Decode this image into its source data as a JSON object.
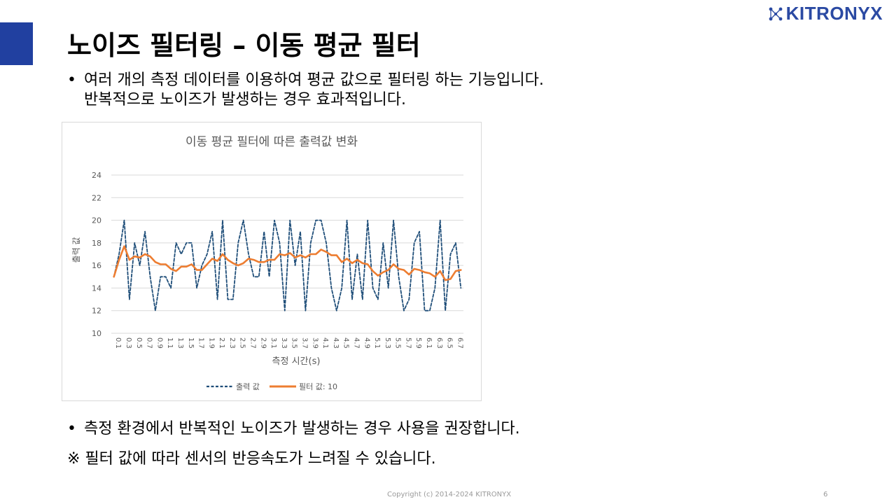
{
  "brand": {
    "logo_text": "KITRONYX",
    "logo_icon": "network-nodes-icon",
    "accent_color": "#2140a0"
  },
  "slide": {
    "title": "노이즈 필터링 – 이동 평균 필터",
    "bullet1_line1": "여러 개의 측정 데이터를 이용하여 평균 값으로 필터링 하는 기능입니다.",
    "bullet1_line2": "반복적으로 노이즈가 발생하는 경우 효과적입니다.",
    "bullet2": "측정 환경에서 반복적인 노이즈가 발생하는 경우 사용을 권장합니다.",
    "note": "※ 필터 값에 따라 센서의 반응속도가 느려질 수 있습니다.",
    "bullet_char": "•"
  },
  "footer": {
    "copyright": "Copyright (c) 2014-2024 KITRONYX",
    "page_number": "6"
  },
  "chart_data": {
    "type": "line",
    "title": "이동 평균 필터에 따른 출력값 변화",
    "xlabel": "측정 시간(s)",
    "ylabel": "출력 값",
    "ylim": [
      10,
      24
    ],
    "yticks": [
      10,
      12,
      14,
      16,
      18,
      20,
      22,
      24
    ],
    "grid": true,
    "legend_position": "bottom",
    "x": [
      0.1,
      0.2,
      0.3,
      0.4,
      0.5,
      0.6,
      0.7,
      0.8,
      0.9,
      1.0,
      1.1,
      1.2,
      1.3,
      1.4,
      1.5,
      1.6,
      1.7,
      1.8,
      1.9,
      2.0,
      2.1,
      2.2,
      2.3,
      2.4,
      2.5,
      2.6,
      2.7,
      2.8,
      2.9,
      3.0,
      3.1,
      3.2,
      3.3,
      3.4,
      3.5,
      3.6,
      3.7,
      3.8,
      3.9,
      4.0,
      4.1,
      4.2,
      4.3,
      4.4,
      4.5,
      4.6,
      4.7,
      4.8,
      4.9,
      5.0,
      5.1,
      5.2,
      5.3,
      5.4,
      5.5,
      5.6,
      5.7,
      5.8,
      5.9,
      6.0,
      6.1,
      6.2,
      6.3,
      6.4,
      6.5,
      6.6,
      6.7,
      6.8
    ],
    "xtick_labels": [
      "0.1",
      "0.3",
      "0.5",
      "0.7",
      "0.9",
      "1.1",
      "1.3",
      "1.5",
      "1.7",
      "1.9",
      "2.1",
      "2.3",
      "2.5",
      "2.7",
      "2.9",
      "3.1",
      "3.3",
      "3.5",
      "3.7",
      "3.9",
      "4.1",
      "4.3",
      "4.5",
      "4.7",
      "4.9",
      "5.1",
      "5.3",
      "5.5",
      "5.7",
      "5.9",
      "6.1",
      "6.3",
      "6.5",
      "6.7"
    ],
    "series": [
      {
        "name": "출력 값",
        "color": "#1f4e79",
        "style": "dashed",
        "values": [
          15,
          17,
          20,
          13,
          18,
          16,
          19,
          15,
          12,
          15,
          15,
          14,
          18,
          17,
          18,
          18,
          14,
          16,
          17,
          19,
          13,
          20,
          13,
          13,
          18,
          20,
          17,
          15,
          15,
          19,
          15,
          20,
          18,
          12,
          20,
          16,
          19,
          12,
          18,
          20,
          20,
          18,
          14,
          12,
          14,
          20,
          13,
          17,
          13,
          20,
          14,
          13,
          18,
          14,
          20,
          15,
          12,
          13,
          18,
          19,
          12,
          12,
          14,
          20,
          12,
          17,
          18,
          14
        ]
      },
      {
        "name": "필터 값: 10",
        "color": "#ed7d31",
        "style": "solid",
        "values": [
          15.0,
          16.5,
          17.7,
          16.5,
          16.8,
          16.7,
          17.0,
          16.8,
          16.3,
          16.1,
          16.1,
          15.7,
          15.5,
          15.9,
          15.9,
          16.1,
          15.6,
          15.6,
          16.1,
          16.6,
          16.4,
          17.0,
          16.5,
          16.2,
          16.0,
          16.2,
          16.6,
          16.5,
          16.3,
          16.3,
          16.5,
          16.5,
          17.0,
          16.9,
          17.1,
          16.7,
          16.9,
          16.7,
          17.0,
          17.0,
          17.4,
          17.2,
          16.9,
          16.9,
          16.3,
          16.6,
          16.2,
          16.5,
          16.2,
          16.1,
          15.5,
          15.1,
          15.4,
          15.6,
          16.1,
          15.7,
          15.6,
          15.2,
          15.7,
          15.6,
          15.4,
          15.3,
          15.0,
          15.5,
          14.7,
          14.8,
          15.5,
          15.6
        ]
      }
    ]
  }
}
